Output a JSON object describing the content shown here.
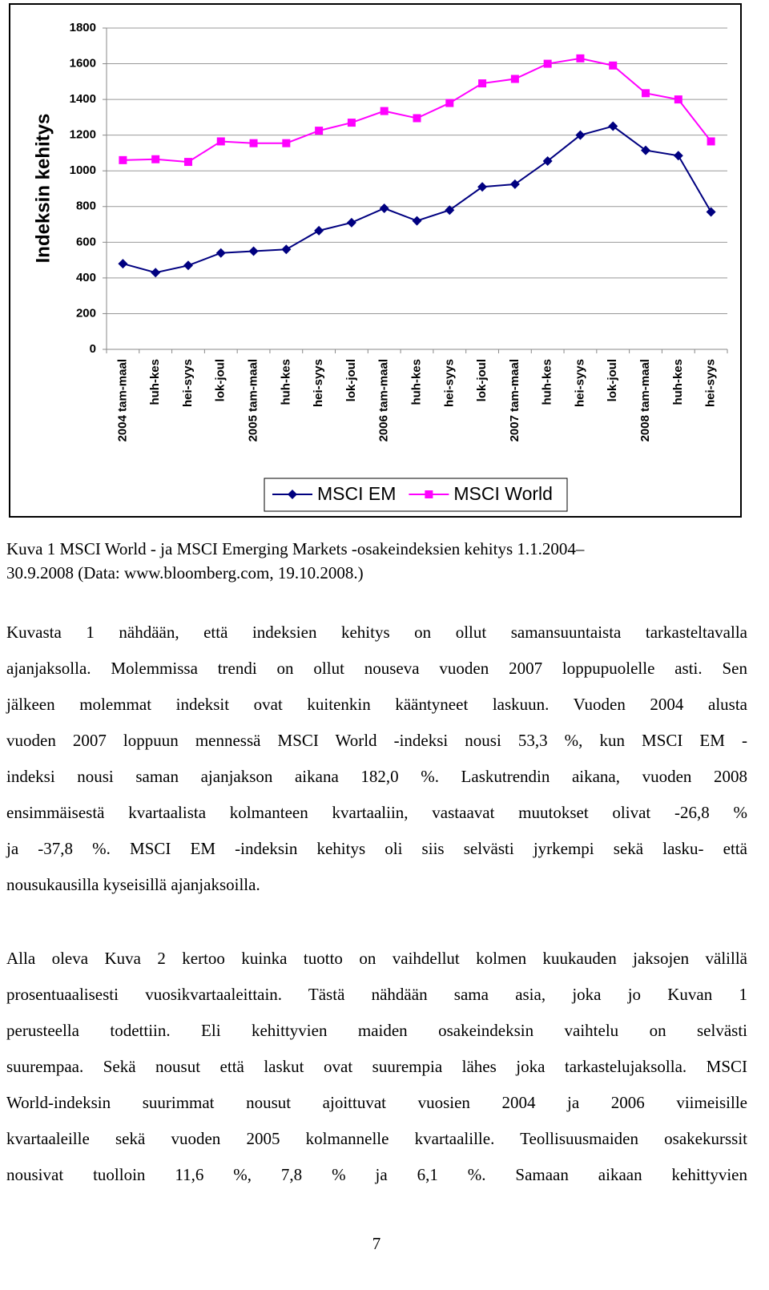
{
  "chart_data": {
    "type": "line",
    "ylabel": "Indeksin kehitys",
    "categories": [
      "2004 tam-maal",
      "huh-kes",
      "hei-syys",
      "lok-joul",
      "2005 tam-maal",
      "huh-kes",
      "hei-syys",
      "lok-joul",
      "2006 tam-maal",
      "huh-kes",
      "hei-syys",
      "lok-joul",
      "2007 tam-maal",
      "huh-kes",
      "hei-syys",
      "lok-joul",
      "2008 tam-maal",
      "huh-kes",
      "hei-syys"
    ],
    "series": [
      {
        "name": "MSCI EM",
        "color": "#000080",
        "marker": "diamond",
        "values": [
          480,
          430,
          470,
          540,
          550,
          560,
          665,
          710,
          790,
          720,
          780,
          910,
          925,
          1055,
          1200,
          1250,
          1115,
          1085,
          770
        ]
      },
      {
        "name": "MSCI World",
        "color": "#ff00ff",
        "marker": "square",
        "values": [
          1060,
          1065,
          1050,
          1165,
          1155,
          1155,
          1225,
          1270,
          1335,
          1295,
          1380,
          1490,
          1515,
          1600,
          1630,
          1590,
          1435,
          1400,
          1165
        ]
      }
    ],
    "ylim": [
      0,
      1800
    ],
    "yticks": [
      0,
      200,
      400,
      600,
      800,
      1000,
      1200,
      1400,
      1600,
      1800
    ],
    "grid": true,
    "legend": "bottom"
  },
  "caption": [
    "Kuva 1 MSCI World - ja MSCI Emerging Markets -osakeindeksien kehitys 1.1.2004–",
    "30.9.2008 (Data: www.bloomberg.com, 19.10.2008.)"
  ],
  "paragraphs": [
    [
      "Kuvasta 1 nähdään, että indeksien kehitys on ollut samansuuntaista tarkasteltavalla",
      "ajanjaksolla. Molemmissa trendi on ollut nouseva vuoden 2007 loppupuolelle asti. Sen",
      "jälkeen molemmat indeksit ovat kuitenkin kääntyneet laskuun. Vuoden 2004 alusta",
      "vuoden 2007 loppuun mennessä MSCI World -indeksi nousi 53,3 %, kun MSCI EM -",
      "indeksi nousi saman ajanjakson aikana 182,0 %. Laskutrendin aikana, vuoden 2008",
      "ensimmäisestä kvartaalista kolmanteen kvartaaliin, vastaavat muutokset olivat -26,8 %",
      "ja -37,8 %. MSCI EM -indeksin kehitys oli siis selvästi jyrkempi sekä lasku- että",
      "nousukausilla kyseisillä ajanjaksoilla."
    ],
    [
      "Alla oleva Kuva 2 kertoo kuinka tuotto on vaihdellut kolmen kuukauden jaksojen välillä",
      "prosentuaalisesti vuosikvartaaleittain. Tästä nähdään sama asia, joka jo Kuvan 1",
      "perusteella todettiin. Eli kehittyvien maiden osakeindeksin vaihtelu on selvästi",
      "suurempaa. Sekä nousut että laskut ovat suurempia lähes joka tarkastelujaksolla. MSCI",
      "World-indeksin suurimmat nousut ajoittuvat vuosien 2004 ja 2006 viimeisille",
      "kvartaaleille sekä vuoden 2005 kolmannelle kvartaalille. Teollisuusmaiden osakekurssit",
      "nousivat tuolloin 11,6 %, 7,8 % ja 6,1 %. Samaan aikaan kehittyvien"
    ]
  ],
  "page_number": "7"
}
